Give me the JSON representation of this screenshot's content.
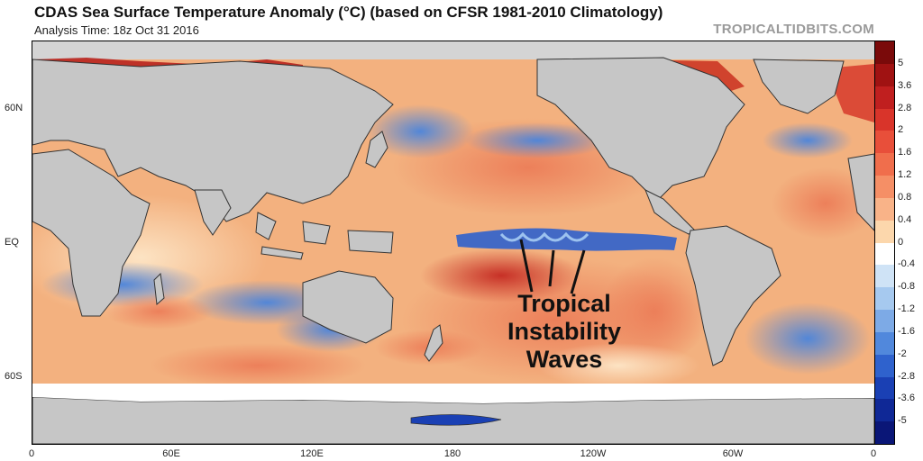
{
  "header": {
    "title": "CDAS Sea Surface Temperature Anomaly (°C) (based on CFSR 1981-2010 Climatology)",
    "analysis_time": "Analysis Time: 18z Oct 31 2016",
    "brand": "TROPICALTIDBITS.COM"
  },
  "axes": {
    "x_ticks": [
      "0",
      "60E",
      "120E",
      "180",
      "120W",
      "60W",
      "0"
    ],
    "y_ticks": [
      "60N",
      "EQ",
      "60S"
    ]
  },
  "colorbar": {
    "labels": [
      "5",
      "3.6",
      "2.8",
      "2",
      "1.6",
      "1.2",
      "0.8",
      "0.4",
      "0",
      "-0.4",
      "-0.8",
      "-1.2",
      "-1.6",
      "-2",
      "-2.8",
      "-3.6",
      "-5"
    ],
    "colors": [
      "#7a0a0a",
      "#a01212",
      "#c01f1f",
      "#d9342a",
      "#e84f3a",
      "#f06e4c",
      "#f58f66",
      "#f9b388",
      "#fcd7ac",
      "#ffffff",
      "#cfe3f6",
      "#a6c9ef",
      "#7daae6",
      "#5188dc",
      "#2f62cd",
      "#1a40b4",
      "#0f2896",
      "#0a1677"
    ]
  },
  "annotation": {
    "lines": [
      "Tropical",
      "Instability",
      "Waves"
    ]
  },
  "map_colors": {
    "land": "#c6c6c6",
    "ocean_warm": "#f2a372",
    "ocean_cool": "#3f78d6"
  }
}
